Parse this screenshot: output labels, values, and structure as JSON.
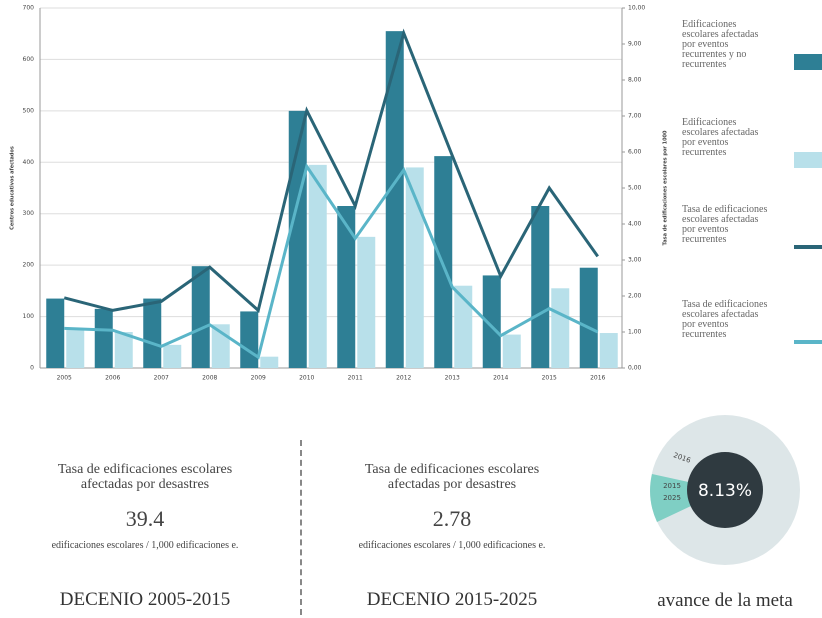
{
  "chart_data": {
    "type": "bar_line",
    "categories": [
      "2005",
      "2006",
      "2007",
      "2008",
      "2009",
      "2010",
      "2011",
      "2012",
      "2013",
      "2014",
      "2015",
      "2016"
    ],
    "series": [
      {
        "name": "Edificaciones escolares afectadas por eventos recurrentes y no recurrentes",
        "color": "#2e7f95",
        "kind": "bar",
        "axis": "y",
        "values": [
          135,
          115,
          135,
          198,
          110,
          500,
          315,
          655,
          412,
          180,
          315,
          195
        ]
      },
      {
        "name": "Edificaciones escolares afectadas por eventos recurrentes",
        "color": "#b8e0ea",
        "kind": "bar",
        "axis": "y",
        "values": [
          75,
          70,
          45,
          85,
          22,
          395,
          255,
          390,
          160,
          65,
          155,
          68
        ]
      },
      {
        "name": "Tasa de edificaciones escolares afectadas por eventos recurrentes",
        "color": "#2a6577",
        "kind": "line",
        "axis": "y2",
        "values": [
          1.95,
          1.6,
          1.85,
          2.8,
          1.6,
          7.15,
          4.5,
          9.3,
          5.9,
          2.55,
          5.0,
          3.1
        ]
      },
      {
        "name": "Tasa de edificaciones escolares afectadas por eventos recurrentes",
        "color": "#5ab5c8",
        "kind": "line",
        "axis": "y2",
        "values": [
          1.1,
          1.05,
          0.6,
          1.2,
          0.3,
          5.6,
          3.6,
          5.5,
          2.25,
          0.9,
          1.65,
          1.0
        ]
      }
    ],
    "ylabel": "Centros educativos afectados",
    "y2label": "Tasa de edificaciones escolares por 1000",
    "ylim": [
      0,
      700
    ],
    "yticks": [
      0,
      100,
      200,
      300,
      400,
      500,
      600,
      700
    ],
    "y2lim": [
      0,
      10
    ],
    "y2ticks": [
      {
        "value": 0,
        "label": "0,00"
      },
      {
        "value": 1,
        "label": "1,00"
      },
      {
        "value": 2,
        "label": "2,00"
      },
      {
        "value": 3,
        "label": "3,00"
      },
      {
        "value": 4,
        "label": "4,00"
      },
      {
        "value": 5,
        "label": "5,00"
      },
      {
        "value": 6,
        "label": "6,00"
      },
      {
        "value": 7,
        "label": "7,00"
      },
      {
        "value": 8,
        "label": "8,00"
      },
      {
        "value": 9,
        "label": "9,00"
      },
      {
        "value": 10,
        "label": "10,00"
      }
    ],
    "grid": true,
    "legend": "right"
  },
  "panels": [
    {
      "title": "Tasa de edificaciones escolares afectadas por desastres",
      "value": "39.4",
      "unit": "edificaciones escolares / 1,000 edificaciones e.",
      "period": "DECENIO 2005-2015"
    },
    {
      "title": "Tasa de edificaciones escolares afectadas por desastres",
      "value": "2.78",
      "unit": "edificaciones escolares / 1,000 edificaciones e.",
      "period": "DECENIO 2015-2025"
    }
  ],
  "goal": {
    "center_label": "8.13%",
    "labels": [
      "2016",
      "2015",
      "2025"
    ],
    "caption": "avance de la meta"
  }
}
